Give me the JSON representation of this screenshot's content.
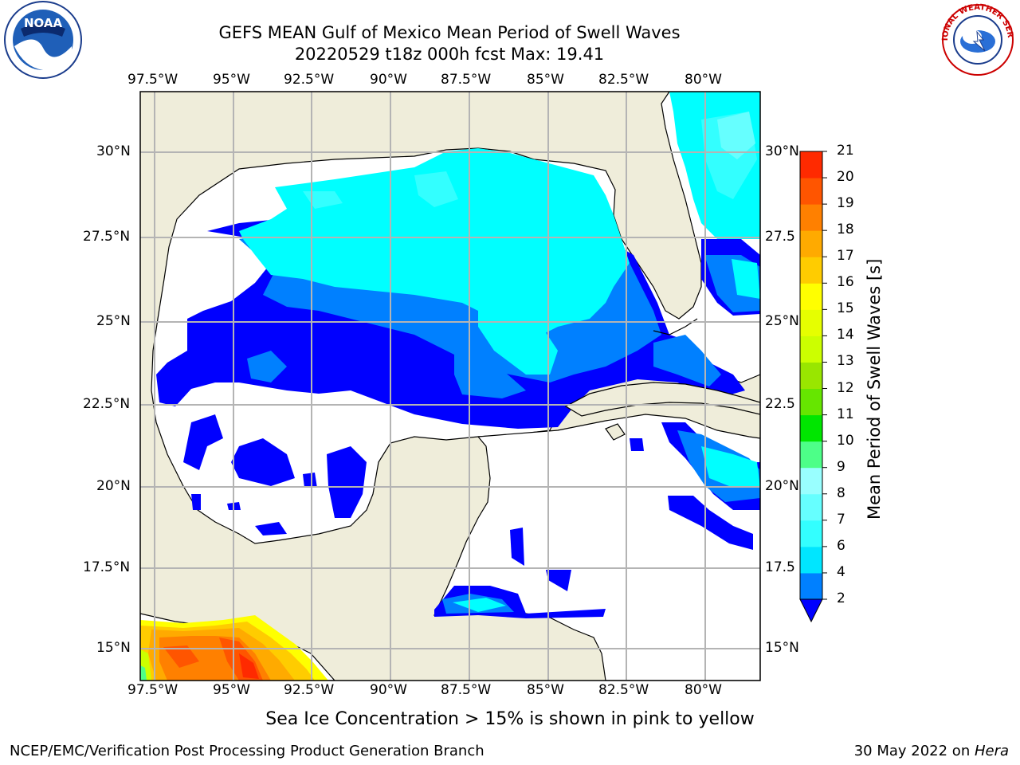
{
  "title": {
    "line1": "GEFS MEAN Gulf of Mexico Mean Period of Swell Waves",
    "line2": "20220529 t18z 000h fcst   Max: 19.41"
  },
  "map": {
    "lon_ticks_top": [
      "97.5°W",
      "95°W",
      "92.5°W",
      "90°W",
      "87.5°W",
      "85°W",
      "82.5°W",
      "80°W"
    ],
    "lon_ticks_bottom": [
      "97.5°W",
      "95°W",
      "92.5°W",
      "90°W",
      "87.5°W",
      "85°W",
      "82.5°W",
      "80°W"
    ],
    "lat_ticks_left": [
      "30°N",
      "27.5°N",
      "25°N",
      "22.5°N",
      "20°N",
      "17.5°N",
      "15°N"
    ],
    "lat_ticks_right": [
      "30°N",
      "27.5",
      "25°N",
      "22.5",
      "20°N",
      "17.5",
      "15°N"
    ],
    "colors": {
      "land": "#efedda",
      "ocean_nodata": "#ffffff",
      "grid": "#b4b4b4",
      "coast": "#000000"
    }
  },
  "colorbar": {
    "title": "Mean Period of Swell Waves [s]",
    "levels": [
      "2",
      "4",
      "6",
      "7",
      "8",
      "9",
      "10",
      "11",
      "12",
      "13",
      "14",
      "15",
      "16",
      "17",
      "18",
      "19",
      "20",
      "21"
    ],
    "colors": [
      "#0000ff",
      "#0080ff",
      "#00e6ff",
      "#33ffff",
      "#66ffff",
      "#99ffff",
      "#4dff88",
      "#00e600",
      "#66e600",
      "#99e600",
      "#ccff00",
      "#e6ff00",
      "#ffff00",
      "#ffcc00",
      "#ffaa00",
      "#ff8000",
      "#ff5500",
      "#ff2a00",
      "#ff0000"
    ]
  },
  "caption": "Sea Ice Concentration > 15% is shown in pink to yellow",
  "footer": {
    "left": "NCEP/EMC/Verification Post Processing Product Generation Branch",
    "right_prefix": "30 May 2022 on ",
    "right_machine": "Hera"
  },
  "logos": {
    "left": "NOAA",
    "left_ring": "NATIONAL OCEANIC AND ATMOSPHERIC ADMINISTRATION · U.S. DEPARTMENT OF COMMERCE",
    "right_ring": "NATIONAL WEATHER SERVICE"
  }
}
